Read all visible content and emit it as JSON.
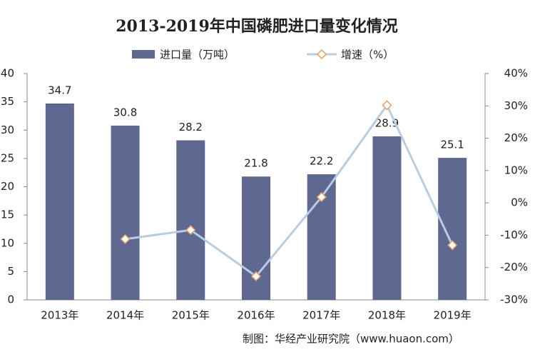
{
  "chart_data": {
    "type": "bar",
    "title": "2013-2019年中国磷肥进口量变化情况",
    "source": "制图：华经产业研究院（www.huaon.com）",
    "categories": [
      "2013年",
      "2014年",
      "2015年",
      "2016年",
      "2017年",
      "2018年",
      "2019年"
    ],
    "series": [
      {
        "name": "进口量（万吨）",
        "type": "bar",
        "color": "#5f6891",
        "values": [
          34.7,
          30.8,
          28.2,
          21.8,
          22.2,
          28.9,
          25.1
        ]
      },
      {
        "name": "增速（%）",
        "type": "line",
        "axis": "y2",
        "color": "#b9cde0",
        "marker_color": "#e8a060",
        "values": [
          null,
          -11.2,
          -8.4,
          -22.7,
          1.8,
          30.2,
          -13.1
        ]
      }
    ],
    "ylim": [
      0,
      40
    ],
    "yticks": [
      0,
      5,
      10,
      15,
      20,
      25,
      30,
      35,
      40
    ],
    "y2lim": [
      -30,
      40
    ],
    "y2ticks": [
      {
        "value": -30,
        "label": "-30%"
      },
      {
        "value": -20,
        "label": "-20%"
      },
      {
        "value": -10,
        "label": "-10%"
      },
      {
        "value": 0,
        "label": "0%"
      },
      {
        "value": 10,
        "label": "10%"
      },
      {
        "value": 20,
        "label": "20%"
      },
      {
        "value": 30,
        "label": "30%"
      },
      {
        "value": 40,
        "label": "40%"
      }
    ]
  }
}
